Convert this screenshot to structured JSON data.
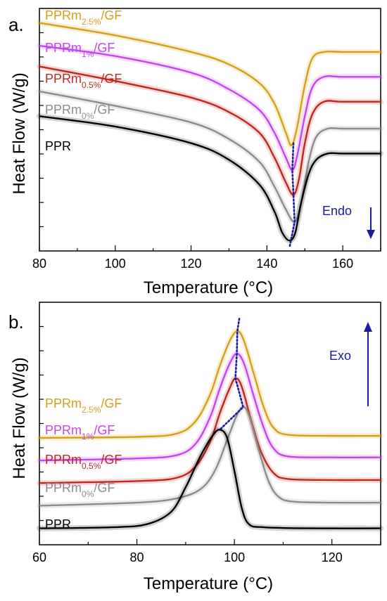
{
  "chart_data": [
    {
      "type": "line",
      "panel": "a.",
      "xlabel": "Temperature (°C)",
      "ylabel": "Heat Flow (W/g)",
      "xlim": [
        80,
        170
      ],
      "x_ticks": [
        80,
        100,
        120,
        140,
        160
      ],
      "annotation": "Endo",
      "series": [
        {
          "name": "PPRm2.5%/GF",
          "base": "PPRm",
          "sub": "2.5%",
          "tail": "/GF",
          "color": "#d4a017",
          "points": [
            [
              80,
              0.95
            ],
            [
              100,
              0.89
            ],
            [
              120,
              0.81
            ],
            [
              130,
              0.75
            ],
            [
              138,
              0.66
            ],
            [
              142,
              0.56
            ],
            [
              145,
              0.42
            ],
            [
              146.5,
              0.36
            ],
            [
              148,
              0.45
            ],
            [
              150,
              0.65
            ],
            [
              152,
              0.78
            ],
            [
              155,
              0.81
            ],
            [
              160,
              0.81
            ],
            [
              170,
              0.81
            ]
          ]
        },
        {
          "name": "PPRm1%/GF",
          "base": "PPRm",
          "sub": "1%",
          "tail": "/GF",
          "color": "#c346f0",
          "points": [
            [
              80,
              0.84
            ],
            [
              100,
              0.79
            ],
            [
              120,
              0.71
            ],
            [
              130,
              0.63
            ],
            [
              138,
              0.53
            ],
            [
              142,
              0.42
            ],
            [
              145,
              0.3
            ],
            [
              146.7,
              0.24
            ],
            [
              148,
              0.31
            ],
            [
              150,
              0.5
            ],
            [
              152,
              0.64
            ],
            [
              155,
              0.69
            ],
            [
              160,
              0.69
            ],
            [
              170,
              0.69
            ]
          ]
        },
        {
          "name": "PPRm0.5%/GF",
          "base": "PPRm",
          "sub": "0.5%",
          "tail": "/GF",
          "color": "#c0281e",
          "points": [
            [
              80,
              0.74
            ],
            [
              100,
              0.67
            ],
            [
              120,
              0.59
            ],
            [
              130,
              0.52
            ],
            [
              138,
              0.42
            ],
            [
              142,
              0.3
            ],
            [
              145,
              0.18
            ],
            [
              147,
              0.12
            ],
            [
              148.5,
              0.2
            ],
            [
              150,
              0.37
            ],
            [
              152,
              0.51
            ],
            [
              155,
              0.57
            ],
            [
              160,
              0.57
            ],
            [
              170,
              0.57
            ]
          ]
        },
        {
          "name": "PPRm0%/GF",
          "base": "PPRm",
          "sub": "0%",
          "tail": "/GF",
          "color": "#8c8c8c",
          "points": [
            [
              80,
              0.62
            ],
            [
              100,
              0.55
            ],
            [
              120,
              0.47
            ],
            [
              130,
              0.39
            ],
            [
              138,
              0.28
            ],
            [
              142,
              0.16
            ],
            [
              145,
              0.05
            ],
            [
              147.3,
              -0.01
            ],
            [
              149,
              0.08
            ],
            [
              151,
              0.28
            ],
            [
              153,
              0.4
            ],
            [
              156,
              0.44
            ],
            [
              160,
              0.44
            ],
            [
              170,
              0.44
            ]
          ]
        },
        {
          "name": "PPR",
          "base": "PPR",
          "sub": "",
          "tail": "",
          "color": "#000000",
          "points": [
            [
              80,
              0.5
            ],
            [
              100,
              0.45
            ],
            [
              120,
              0.37
            ],
            [
              130,
              0.29
            ],
            [
              138,
              0.17
            ],
            [
              142,
              0.04
            ],
            [
              144,
              -0.06
            ],
            [
              146,
              -0.1
            ],
            [
              147.5,
              -0.06
            ],
            [
              149,
              0.08
            ],
            [
              151,
              0.22
            ],
            [
              153,
              0.29
            ],
            [
              156,
              0.32
            ],
            [
              160,
              0.32
            ],
            [
              170,
              0.32
            ]
          ]
        }
      ],
      "peak_trend": [
        [
          147,
          0.37
        ],
        [
          146.7,
          0.24
        ],
        [
          147,
          0.12
        ],
        [
          147.3,
          -0.01
        ],
        [
          146,
          -0.13
        ]
      ]
    },
    {
      "type": "line",
      "panel": "b.",
      "xlabel": "Temperature (°C)",
      "ylabel": "Heat Flow (W/g)",
      "xlim": [
        60,
        130
      ],
      "x_ticks": [
        60,
        80,
        100,
        120
      ],
      "annotation": "Exo",
      "series": [
        {
          "name": "PPRm2.5%/GF",
          "base": "PPRm",
          "sub": "2.5%",
          "tail": "/GF",
          "color": "#d4a017",
          "points": [
            [
              60,
              0.52
            ],
            [
              80,
              0.525
            ],
            [
              88,
              0.54
            ],
            [
              92,
              0.6
            ],
            [
              95,
              0.73
            ],
            [
              97,
              0.87
            ],
            [
              99,
              0.99
            ],
            [
              100.6,
              1.04
            ],
            [
              102,
              0.99
            ],
            [
              104,
              0.83
            ],
            [
              106,
              0.67
            ],
            [
              108,
              0.57
            ],
            [
              111,
              0.535
            ],
            [
              120,
              0.53
            ],
            [
              130,
              0.53
            ]
          ]
        },
        {
          "name": "PPRm1%/GF",
          "base": "PPRm",
          "sub": "1%",
          "tail": "/GF",
          "color": "#c346f0",
          "points": [
            [
              60,
              0.41
            ],
            [
              80,
              0.42
            ],
            [
              88,
              0.435
            ],
            [
              92,
              0.49
            ],
            [
              95,
              0.62
            ],
            [
              97,
              0.76
            ],
            [
              99,
              0.88
            ],
            [
              100.5,
              0.93
            ],
            [
              102,
              0.88
            ],
            [
              104,
              0.72
            ],
            [
              106,
              0.57
            ],
            [
              108,
              0.47
            ],
            [
              111,
              0.43
            ],
            [
              120,
              0.425
            ],
            [
              130,
              0.425
            ]
          ]
        },
        {
          "name": "PPRm0.5%/GF",
          "base": "PPRm",
          "sub": "0.5%",
          "tail": "/GF",
          "color": "#c0281e",
          "points": [
            [
              60,
              0.3
            ],
            [
              80,
              0.31
            ],
            [
              88,
              0.325
            ],
            [
              92,
              0.38
            ],
            [
              95,
              0.5
            ],
            [
              97,
              0.64
            ],
            [
              99,
              0.76
            ],
            [
              100.2,
              0.81
            ],
            [
              101.5,
              0.77
            ],
            [
              103.5,
              0.6
            ],
            [
              105.5,
              0.45
            ],
            [
              108,
              0.35
            ],
            [
              111,
              0.32
            ],
            [
              120,
              0.315
            ],
            [
              130,
              0.315
            ]
          ]
        },
        {
          "name": "PPRm0%/GF",
          "base": "PPRm",
          "sub": "0%",
          "tail": "/GF",
          "color": "#8c8c8c",
          "points": [
            [
              60,
              0.19
            ],
            [
              80,
              0.205
            ],
            [
              88,
              0.225
            ],
            [
              93,
              0.27
            ],
            [
              96,
              0.36
            ],
            [
              98.5,
              0.51
            ],
            [
              100.5,
              0.63
            ],
            [
              101.8,
              0.67
            ],
            [
              103,
              0.63
            ],
            [
              105,
              0.46
            ],
            [
              107,
              0.31
            ],
            [
              109,
              0.235
            ],
            [
              112,
              0.21
            ],
            [
              120,
              0.205
            ],
            [
              130,
              0.205
            ]
          ]
        },
        {
          "name": "PPR",
          "base": "PPR",
          "sub": "",
          "tail": "",
          "color": "#000000",
          "points": [
            [
              60,
              0.08
            ],
            [
              75,
              0.085
            ],
            [
              82,
              0.1
            ],
            [
              87,
              0.16
            ],
            [
              90,
              0.28
            ],
            [
              93,
              0.43
            ],
            [
              95.5,
              0.53
            ],
            [
              97,
              0.56
            ],
            [
              98.5,
              0.52
            ],
            [
              100,
              0.36
            ],
            [
              101.5,
              0.18
            ],
            [
              103,
              0.1
            ],
            [
              106,
              0.085
            ],
            [
              115,
              0.08
            ],
            [
              130,
              0.08
            ]
          ]
        }
      ],
      "peak_trend": [
        [
          101,
          1.1
        ],
        [
          100.6,
          1.04
        ],
        [
          100.5,
          0.93
        ],
        [
          100.2,
          0.81
        ],
        [
          101.8,
          0.67
        ],
        [
          97,
          0.56
        ]
      ]
    }
  ]
}
